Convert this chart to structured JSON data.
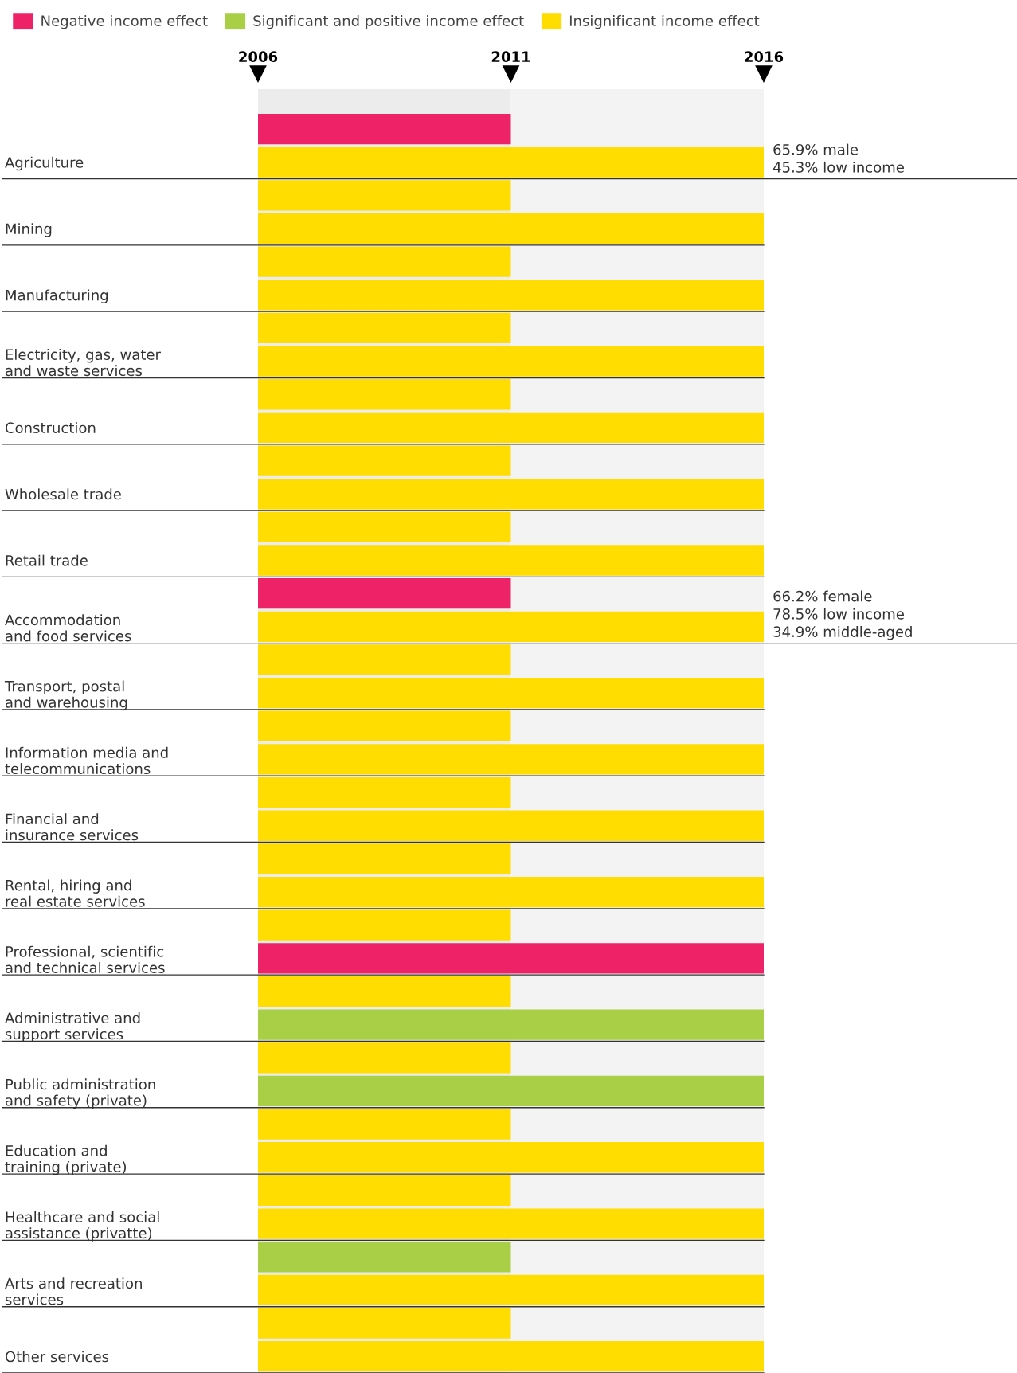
{
  "chart_data": {
    "type": "bar",
    "orientation": "horizontal",
    "categories": [
      null,
      "Agriculture",
      null,
      "Mining",
      null,
      "Manufacturing",
      null,
      "Electricity, gas, water\nand waste services",
      null,
      "Construction",
      null,
      "Wholesale trade",
      null,
      "Retail trade",
      null,
      "Accommodation\nand food services",
      null,
      "Transport, postal\nand warehousing",
      null,
      "Information media and\ntelecommunications",
      null,
      "Financial and\ninsurance services",
      null,
      "Rental, hiring and\nreal estate services",
      null,
      "Professional, scientific\nand technical services",
      null,
      "Administrative and\nsupport services",
      null,
      "Public administration\nand safety (private)",
      null,
      "Education and\ntraining (private)",
      null,
      "Healthcare and social\nassistance (privatte)",
      null,
      "Arts and recreation\nservices",
      null,
      "Other services"
    ],
    "series": [
      {
        "name": "Negative income effect",
        "color": "#ee2266",
        "values": [
          2011,
          null,
          null,
          null,
          null,
          null,
          null,
          null,
          null,
          null,
          null,
          null,
          null,
          null,
          2011,
          null,
          null,
          null,
          null,
          null,
          null,
          null,
          null,
          null,
          null,
          2016,
          null,
          null,
          null,
          null,
          null,
          null,
          null,
          null,
          null,
          null,
          null,
          null
        ]
      },
      {
        "name": "Significant and positive income effect",
        "color": "#a8cf45",
        "values": [
          null,
          null,
          null,
          null,
          null,
          null,
          null,
          null,
          null,
          null,
          null,
          null,
          null,
          null,
          null,
          null,
          null,
          null,
          null,
          null,
          null,
          null,
          null,
          null,
          null,
          null,
          null,
          2016,
          null,
          2016,
          null,
          null,
          null,
          null,
          2011,
          null,
          null,
          null
        ]
      },
      {
        "name": "Insignificant income effect",
        "color": "#ffdd00",
        "values": [
          null,
          2016,
          2011,
          2016,
          2011,
          2016,
          2011,
          2016,
          2011,
          2016,
          2011,
          2016,
          2011,
          2016,
          null,
          2016,
          2011,
          2016,
          2011,
          2016,
          2011,
          2016,
          2011,
          2016,
          2011,
          null,
          2011,
          null,
          2011,
          null,
          2011,
          2016,
          2011,
          2016,
          null,
          2016,
          2011,
          2016
        ]
      }
    ],
    "xlim": [
      2006,
      2016
    ],
    "xticks": [
      2006,
      2011,
      2016
    ],
    "bands": [
      {
        "axis": "x",
        "from": 2006,
        "to": 2011,
        "color": "#ebeceb"
      },
      {
        "axis": "x",
        "from": 2011,
        "to": 2016,
        "color": "#f3f3f3"
      }
    ],
    "annotations": [
      {
        "text": "65.9% male\n45.3% low income",
        "x": 2016,
        "y": "Agriculture"
      },
      {
        "text": "66.2% female\n78.5% low income\n34.9% middle-aged",
        "x": 2016,
        "y": "Accommodation\nand food services"
      }
    ],
    "legend": "top",
    "grid": false
  }
}
